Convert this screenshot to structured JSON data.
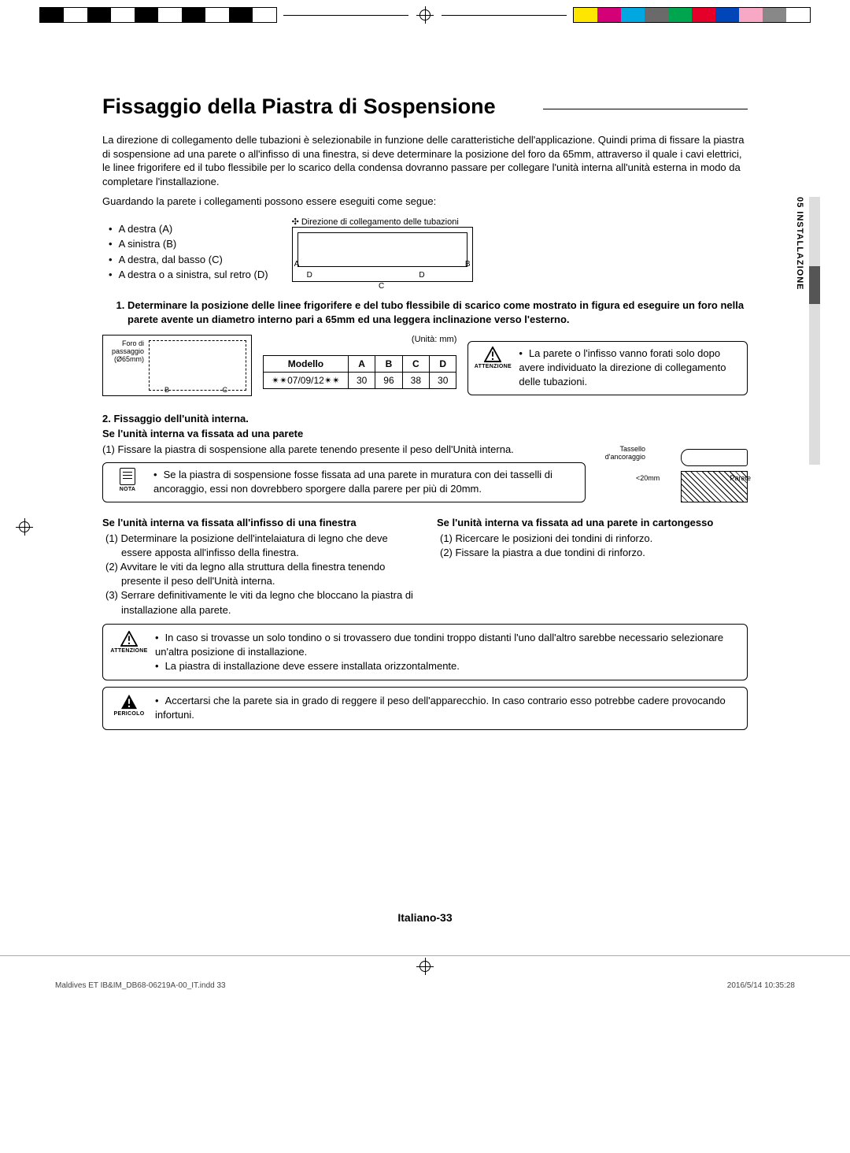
{
  "colorbar_left": [
    "#000000",
    "#ffffff",
    "#000000",
    "#ffffff",
    "#000000",
    "#ffffff",
    "#000000",
    "#ffffff",
    "#000000",
    "#ffffff"
  ],
  "colorbar_right": [
    "#ffe600",
    "#d40078",
    "#00a7e0",
    "#6a6a6a",
    "#00a550",
    "#e40028",
    "#0046b8",
    "#f7a8c4",
    "#888888",
    "#ffffff"
  ],
  "title": "Fissaggio della Piastra di Sospensione",
  "intro": "La direzione di collegamento delle tubazioni è selezionabile in funzione delle caratteristiche dell'applicazione. Quindi  prima di fissare la piastra di sospensione ad una parete o all'infisso di una finestra, si deve determinare la posizione del foro da 65mm, attraverso il quale i cavi elettrici, le linee frigorifere ed il tubo flessibile per lo scarico della condensa dovranno passare per collegare l'unità interna all'unità esterna in modo da completare l'installazione.",
  "intro2": "Guardando la parete i collegamenti possono essere eseguiti come segue:",
  "side_tab": "05  INSTALLAZIONE",
  "dirs": [
    "A destra (A)",
    "A sinistra (B)",
    "A destra, dal basso (C)",
    "A destra o a sinistra, sul retro (D)"
  ],
  "dir_caption": "✣ Direzione di collegamento delle tubazioni",
  "dia_labels": {
    "A": "A",
    "B": "B",
    "C": "C",
    "D": "D"
  },
  "step1": "Determinare la posizione delle linee frigorifere e del tubo flessibile di scarico come mostrato in figura ed eseguire un foro nella parete avente un diametro interno pari a 65mm  ed una leggera inclinazione verso l'esterno.",
  "foro_label": "Foro di passaggio (Ø65mm)",
  "unit_label": "(Unità: mm)",
  "table": {
    "h": [
      "Modello",
      "A",
      "B",
      "C",
      "D"
    ],
    "row": [
      "✴✴07/09/12✴✴",
      "30",
      "96",
      "38",
      "30"
    ]
  },
  "warn1": "La parete o l'infisso vanno forati solo dopo avere individuato la direzione di collegamento delle tubazioni.",
  "step2_h": "2.   Fissaggio dell'unità interna.",
  "wall_h": "Se l'unità interna va fissata ad una parete",
  "wall_1": "(1)  Fissare la piastra di sospensione alla parete  tenendo presente il peso dell'Unità interna.",
  "note1": "Se la piastra di sospensione fosse fissata ad una parete in muratura con dei tasselli di ancoraggio, essi non dovrebbero sporgere dalla parere per più di 20mm.",
  "wall_dia": {
    "tassello": "Tassello d'ancoraggio",
    "parete": "Parete",
    "dist": "<20mm"
  },
  "win_h": "Se l'unità interna va fissata all'infisso di una finestra",
  "win_1": "(1)  Determinare la posizione dell'intelaiatura di legno che deve essere apposta all'infisso della finestra.",
  "win_2": "(2)  Avvitare le viti da legno alla struttura della  finestra tenendo presente il peso dell'Unità interna.",
  "win_3": "(3)  Serrare definitivamente le viti da legno che bloccano la piastra di installazione alla parete.",
  "cart_h": "Se l'unità interna va fissata ad una parete in cartongesso",
  "cart_1": "(1)  Ricercare le posizioni dei tondini di rinforzo.",
  "cart_2": "(2)  Fissare la piastra a due tondini di rinforzo.",
  "warn2a": "In caso si trovasse un solo tondino o si trovassero due tondini troppo distanti l'uno dall'altro sarebbe necessario selezionare un'altra posizione di installazione.",
  "warn2b": "La piastra di installazione deve essere installata orizzontalmente.",
  "danger": "Accertarsi che la parete sia in grado di reggere il peso dell'apparecchio. In caso contrario  esso potrebbe cadere provocando infortuni.",
  "labels": {
    "attenzione": "ATTENZIONE",
    "nota": "NOTA",
    "pericolo": "PERICOLO"
  },
  "page_num": "Italiano-33",
  "footer_l": "Maldives ET IB&IM_DB68-06219A-00_IT.indd   33",
  "footer_r": "2016/5/14   10:35:28"
}
